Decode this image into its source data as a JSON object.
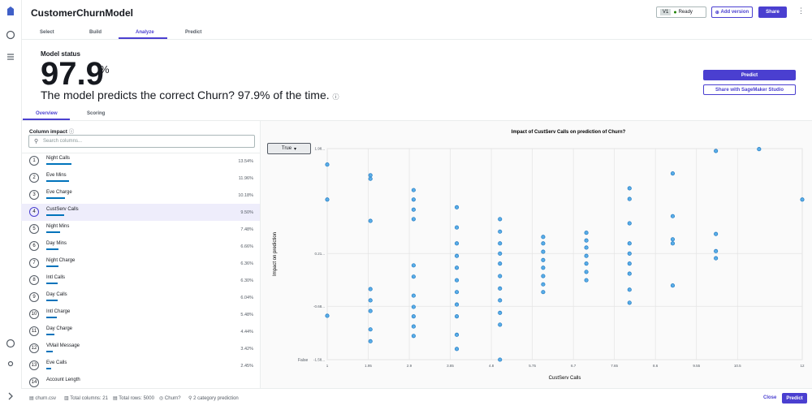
{
  "header": {
    "title": "CustomerChurnModel",
    "version": "V1",
    "status": "Ready",
    "add_version": "Add version",
    "share": "Share"
  },
  "tabs": [
    "Select",
    "Build",
    "Analyze",
    "Predict"
  ],
  "model_status": {
    "label": "Model status",
    "accuracy": "97.9",
    "unit": "%",
    "sentence": "The model predicts the correct Churn? 97.9% of the time.",
    "predict_button": "Predict",
    "share_button": "Share with SageMaker Studio"
  },
  "sub_tabs": [
    "Overview",
    "Scoring"
  ],
  "column_impact": {
    "title": "Column impact",
    "search_placeholder": "Search columns...",
    "rows": [
      {
        "rank": 1,
        "name": "Night Calls",
        "value": 13.54,
        "label": "13.54%"
      },
      {
        "rank": 2,
        "name": "Eve Mins",
        "value": 11.96,
        "label": "11.96%"
      },
      {
        "rank": 3,
        "name": "Eve Charge",
        "value": 10.18,
        "label": "10.18%"
      },
      {
        "rank": 4,
        "name": "CustServ Calls",
        "value": 9.5,
        "label": "9.50%"
      },
      {
        "rank": 5,
        "name": "Night Mins",
        "value": 7.48,
        "label": "7.48%"
      },
      {
        "rank": 6,
        "name": "Day Mins",
        "value": 6.66,
        "label": "6.66%"
      },
      {
        "rank": 7,
        "name": "Night Charge",
        "value": 6.36,
        "label": "6.36%"
      },
      {
        "rank": 8,
        "name": "Intl Calls",
        "value": 6.3,
        "label": "6.30%"
      },
      {
        "rank": 9,
        "name": "Day Calls",
        "value": 6.04,
        "label": "6.04%"
      },
      {
        "rank": 10,
        "name": "Intl Charge",
        "value": 5.48,
        "label": "5.48%"
      },
      {
        "rank": 11,
        "name": "Day Charge",
        "value": 4.44,
        "label": "4.44%"
      },
      {
        "rank": 12,
        "name": "VMail Message",
        "value": 3.42,
        "label": "3.42%"
      },
      {
        "rank": 13,
        "name": "Eve Calls",
        "value": 2.45,
        "label": "2.45%"
      },
      {
        "rank": 14,
        "name": "Account Length"
      }
    ]
  },
  "chart": {
    "type": "scatter",
    "title": "Impact of CustServ Calls on prediction of Churn?",
    "class_select": "True",
    "x_label": "CustServ Calls",
    "y_label": "Impact on prediction",
    "false_label": "False",
    "color": "#5aaee8",
    "xlim": [
      1,
      12
    ],
    "xticks": [
      1,
      1.95,
      2.9,
      3.85,
      4.8,
      5.75,
      6.7,
      7.65,
      8.6,
      9.55,
      10.5,
      12
    ],
    "ylim": [
      -1.58,
      1.98
    ],
    "yticks": [
      {
        "value": -1.58,
        "label": "-1.58..."
      },
      {
        "value": -0.68,
        "label": "-0.68..."
      },
      {
        "value": 0.21,
        "label": "0.21..."
      },
      {
        "value": 1.98,
        "label": "1.98..."
      }
    ],
    "x": [
      1,
      1,
      1,
      2,
      2,
      2,
      2,
      2,
      2,
      2,
      2,
      3,
      3,
      3,
      3,
      3,
      3,
      3,
      3,
      3,
      3,
      3,
      4,
      4,
      4,
      4,
      4,
      4,
      4,
      4,
      4,
      4,
      4,
      5,
      5,
      5,
      5,
      5,
      5,
      5,
      5,
      5,
      5,
      5,
      6,
      6,
      6,
      6,
      6,
      6,
      6,
      6,
      7,
      7,
      7,
      7,
      7,
      7,
      7,
      8,
      8,
      8,
      8,
      8,
      8,
      8,
      8,
      8,
      9,
      9,
      9,
      9,
      9,
      10,
      10,
      10,
      10,
      11,
      12
    ],
    "y": [
      1.71,
      1.12,
      -0.84,
      1.53,
      1.47,
      0.76,
      -0.39,
      -0.58,
      -0.76,
      -1.07,
      -1.27,
      1.28,
      1.12,
      0.95,
      0.79,
      0.01,
      -0.18,
      -0.5,
      -0.69,
      -0.85,
      -1.02,
      -1.18,
      0.99,
      0.65,
      0.38,
      0.17,
      -0.03,
      -0.24,
      -0.44,
      -0.65,
      -0.85,
      -1.16,
      -1.4,
      0.79,
      0.58,
      0.38,
      0.21,
      0.04,
      -0.17,
      -0.38,
      -0.58,
      -0.79,
      -0.99,
      -1.58,
      0.49,
      0.38,
      0.24,
      0.1,
      -0.03,
      -0.17,
      -0.31,
      -0.44,
      0.56,
      0.43,
      0.31,
      0.17,
      0.04,
      -0.1,
      -0.24,
      1.31,
      1.13,
      0.72,
      0.38,
      0.21,
      0.04,
      -0.13,
      -0.4,
      -0.62,
      1.56,
      0.84,
      0.45,
      0.38,
      -0.33,
      1.94,
      0.54,
      0.25,
      0.13,
      1.97,
      1.12
    ]
  },
  "footer": {
    "file": "churn.csv",
    "columns": "Total columns: 21",
    "rows": "Total rows: 5000",
    "target": "Churn?",
    "problem": "2 category prediction",
    "close": "Close",
    "predict": "Predict"
  }
}
